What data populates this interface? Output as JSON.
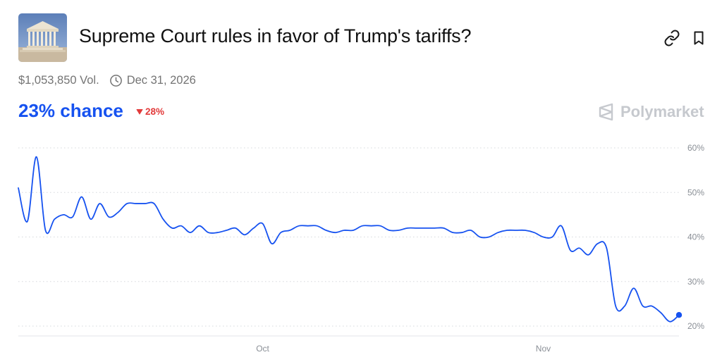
{
  "market": {
    "title": "Supreme Court rules in favor of Trump's tariffs?",
    "volume": "$1,053,850 Vol.",
    "end_date": "Dec 31, 2026",
    "chance": "23% chance",
    "change": "28%",
    "change_direction": "down",
    "brand": "Polymarket",
    "thumbnail_icon": "supreme-court-building-icon"
  },
  "colors": {
    "accent": "#1652f0",
    "negative": "#e23b3b",
    "muted": "#747474",
    "brand": "#c6c9ce"
  },
  "icons": {
    "link": "link-icon",
    "bookmark": "bookmark-icon",
    "clock": "clock-icon",
    "logo": "polymarket-logo-icon"
  },
  "chart_data": {
    "type": "line",
    "title": "",
    "xlabel": "",
    "ylabel": "",
    "y_unit": "%",
    "ylim": [
      20,
      60
    ],
    "y_ticks": [
      20,
      30,
      40,
      50,
      60
    ],
    "y_tick_labels": [
      "20%",
      "30%",
      "40%",
      "50%",
      "60%"
    ],
    "x_ticks": [
      "Oct",
      "Nov"
    ],
    "grid": "horizontal dotted",
    "series": [
      {
        "color": "#1652f0",
        "x": [
          "Sep 4",
          "Sep 5",
          "Sep 6",
          "Sep 7",
          "Sep 8",
          "Sep 9",
          "Sep 10",
          "Sep 11",
          "Sep 12",
          "Sep 13",
          "Sep 14",
          "Sep 15",
          "Sep 16",
          "Sep 17",
          "Sep 18",
          "Sep 19",
          "Sep 20",
          "Sep 21",
          "Sep 22",
          "Sep 23",
          "Sep 24",
          "Sep 25",
          "Sep 26",
          "Sep 27",
          "Sep 28",
          "Sep 29",
          "Sep 30",
          "Oct 1",
          "Oct 2",
          "Oct 3",
          "Oct 4",
          "Oct 5",
          "Oct 6",
          "Oct 7",
          "Oct 8",
          "Oct 9",
          "Oct 10",
          "Oct 11",
          "Oct 12",
          "Oct 13",
          "Oct 14",
          "Oct 15",
          "Oct 16",
          "Oct 17",
          "Oct 18",
          "Oct 19",
          "Oct 20",
          "Oct 21",
          "Oct 22",
          "Oct 23",
          "Oct 24",
          "Oct 25",
          "Oct 26",
          "Oct 27",
          "Oct 28",
          "Oct 29",
          "Oct 30",
          "Oct 31",
          "Nov 1",
          "Nov 2",
          "Nov 3",
          "Nov 4",
          "Nov 5",
          "Nov 6",
          "Nov 7",
          "Nov 8",
          "Nov 9",
          "Nov 10",
          "Nov 11",
          "Nov 12",
          "Nov 13",
          "Nov 14",
          "Nov 15",
          "Nov 16"
        ],
        "values": [
          51,
          43.5,
          58,
          41.5,
          44,
          45,
          44.5,
          49,
          44,
          47.5,
          44.5,
          45.5,
          47.5,
          47.5,
          47.5,
          47.5,
          44,
          42,
          42.5,
          41,
          42.5,
          41,
          41,
          41.5,
          42,
          40.5,
          42,
          43,
          38.5,
          41,
          41.5,
          42.5,
          42.5,
          42.5,
          41.5,
          41,
          41.5,
          41.5,
          42.5,
          42.5,
          42.5,
          41.5,
          41.5,
          42,
          42,
          42,
          42,
          42,
          41,
          41,
          41.5,
          40,
          40,
          41,
          41.5,
          41.5,
          41.5,
          41,
          40,
          40,
          42.5,
          37,
          37.5,
          36,
          38.5,
          37.5,
          24.5,
          24.5,
          28.5,
          24.5,
          24.5,
          23,
          21,
          22.5
        ]
      }
    ]
  }
}
